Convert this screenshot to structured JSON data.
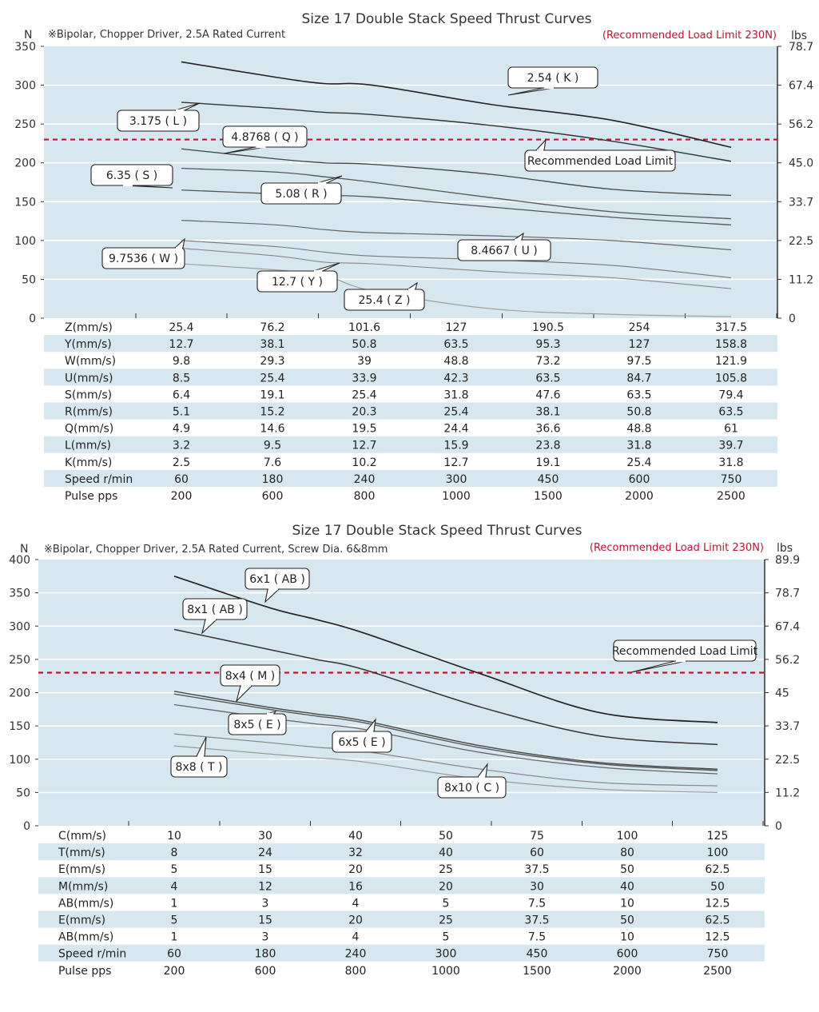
{
  "chart_data": [
    {
      "type": "line",
      "title": "Size 17 Double Stack Speed Thrust Curves",
      "note": "※Bipolar, Chopper Driver, 2.5A Rated Current",
      "limit_label": "(Recommended Load Limit 230N)",
      "limit_callout": "Recommended Load Limit",
      "limit_value": 230,
      "ylabel_left": "N",
      "ylabel_right": "lbs",
      "ylim": [
        0,
        350
      ],
      "yticks_left": [
        "0",
        "50",
        "100",
        "150",
        "200",
        "250",
        "300",
        "350"
      ],
      "yticks_right": [
        "0",
        "11.2",
        "22.5",
        "33.7",
        "45.0",
        "56.2",
        "67.4",
        "78.7"
      ],
      "grid": true,
      "x": [
        200,
        600,
        800,
        1000,
        1500,
        2000,
        2500
      ],
      "series": [
        {
          "name": "2.54 ( K )",
          "values": [
            330,
            310,
            302,
            300,
            275,
            255,
            220
          ]
        },
        {
          "name": "3.175 ( L )",
          "values": [
            278,
            270,
            265,
            262,
            248,
            228,
            202
          ]
        },
        {
          "name": "4.8768 ( Q )",
          "values": [
            218,
            205,
            200,
            198,
            185,
            166,
            158
          ]
        },
        {
          "name": "6.35 ( S )",
          "values": [
            193,
            188,
            182,
            175,
            155,
            137,
            128
          ]
        },
        {
          "name": "5.08 ( R )",
          "values": [
            165,
            160,
            158,
            156,
            143,
            130,
            120
          ]
        },
        {
          "name": "8.4667 ( U )",
          "values": [
            126,
            120,
            114,
            110,
            106,
            100,
            88
          ]
        },
        {
          "name": "9.7536 ( W )",
          "values": [
            100,
            92,
            85,
            80,
            75,
            68,
            52
          ]
        },
        {
          "name": "12.7 ( Y )",
          "values": [
            90,
            80,
            72,
            70,
            60,
            52,
            38
          ]
        },
        {
          "name": "25.4 ( Z )",
          "values": [
            70,
            62,
            55,
            35,
            12,
            5,
            2
          ]
        }
      ],
      "table": {
        "rows": [
          {
            "label": "Z(mm/s)",
            "values": [
              "25.4",
              "76.2",
              "101.6",
              "127",
              "190.5",
              "254",
              "317.5"
            ]
          },
          {
            "label": "Y(mm/s)",
            "values": [
              "12.7",
              "38.1",
              "50.8",
              "63.5",
              "95.3",
              "127",
              "158.8"
            ]
          },
          {
            "label": "W(mm/s)",
            "values": [
              "9.8",
              "29.3",
              "39",
              "48.8",
              "73.2",
              "97.5",
              "121.9"
            ]
          },
          {
            "label": "U(mm/s)",
            "values": [
              "8.5",
              "25.4",
              "33.9",
              "42.3",
              "63.5",
              "84.7",
              "105.8"
            ]
          },
          {
            "label": "S(mm/s)",
            "values": [
              "6.4",
              "19.1",
              "25.4",
              "31.8",
              "47.6",
              "63.5",
              "79.4"
            ]
          },
          {
            "label": "R(mm/s)",
            "values": [
              "5.1",
              "15.2",
              "20.3",
              "25.4",
              "38.1",
              "50.8",
              "63.5"
            ]
          },
          {
            "label": "Q(mm/s)",
            "values": [
              "4.9",
              "14.6",
              "19.5",
              "24.4",
              "36.6",
              "48.8",
              "61"
            ]
          },
          {
            "label": "L(mm/s)",
            "values": [
              "3.2",
              "9.5",
              "12.7",
              "15.9",
              "23.8",
              "31.8",
              "39.7"
            ]
          },
          {
            "label": "K(mm/s)",
            "values": [
              "2.5",
              "7.6",
              "10.2",
              "12.7",
              "19.1",
              "25.4",
              "31.8"
            ]
          },
          {
            "label": "Speed r/min",
            "values": [
              "60",
              "180",
              "240",
              "300",
              "450",
              "600",
              "750"
            ]
          },
          {
            "label": "Pulse  pps",
            "values": [
              "200",
              "600",
              "800",
              "1000",
              "1500",
              "2000",
              "2500"
            ]
          }
        ]
      }
    },
    {
      "type": "line",
      "title": "Size 17 Double Stack Speed Thrust Curves",
      "note": "※Bipolar, Chopper Driver, 2.5A Rated Current, Screw Dia. 6&8mm",
      "limit_label": "(Recommended Load Limit 230N)",
      "limit_callout": "Recommended Load Limit",
      "limit_value": 230,
      "ylabel_left": "N",
      "ylabel_right": "lbs",
      "ylim": [
        0,
        400
      ],
      "yticks_left": [
        "0",
        "50",
        "100",
        "150",
        "200",
        "250",
        "300",
        "350",
        "400"
      ],
      "yticks_right": [
        "0",
        "11.2",
        "22.5",
        "33.7",
        "45",
        "56.2",
        "67.4",
        "78.7",
        "89.9"
      ],
      "grid": true,
      "x": [
        200,
        600,
        800,
        1000,
        1500,
        2000,
        2500
      ],
      "series": [
        {
          "name": "6x1 ( AB )",
          "values": [
            375,
            328,
            310,
            290,
            228,
            170,
            155
          ]
        },
        {
          "name": "8x1 ( AB )",
          "values": [
            295,
            265,
            250,
            235,
            178,
            135,
            122
          ]
        },
        {
          "name": "8x4 ( M )",
          "values": [
            202,
            178,
            168,
            158,
            120,
            95,
            85
          ]
        },
        {
          "name": "6x5 ( E )",
          "values": [
            198,
            175,
            165,
            155,
            117,
            93,
            83
          ]
        },
        {
          "name": "8x5 ( E )",
          "values": [
            182,
            162,
            153,
            145,
            110,
            88,
            78
          ]
        },
        {
          "name": "8x8 ( T )",
          "values": [
            138,
            125,
            118,
            112,
            85,
            65,
            60
          ]
        },
        {
          "name": "8x10 ( C )",
          "values": [
            120,
            108,
            102,
            96,
            70,
            55,
            50
          ]
        }
      ],
      "table": {
        "rows": [
          {
            "label": "C(mm/s)",
            "values": [
              "10",
              "30",
              "40",
              "50",
              "75",
              "100",
              "125"
            ]
          },
          {
            "label": "T(mm/s)",
            "values": [
              "8",
              "24",
              "32",
              "40",
              "60",
              "80",
              "100"
            ]
          },
          {
            "label": "E(mm/s)",
            "values": [
              "5",
              "15",
              "20",
              "25",
              "37.5",
              "50",
              "62.5"
            ]
          },
          {
            "label": "M(mm/s)",
            "values": [
              "4",
              "12",
              "16",
              "20",
              "30",
              "40",
              "50"
            ]
          },
          {
            "label": "AB(mm/s)",
            "values": [
              "1",
              "3",
              "4",
              "5",
              "7.5",
              "10",
              "12.5"
            ]
          },
          {
            "label": "E(mm/s)",
            "values": [
              "5",
              "15",
              "20",
              "25",
              "37.5",
              "50",
              "62.5"
            ]
          },
          {
            "label": "AB(mm/s)",
            "values": [
              "1",
              "3",
              "4",
              "5",
              "7.5",
              "10",
              "12.5"
            ]
          },
          {
            "label": "Speed r/min",
            "values": [
              "60",
              "180",
              "240",
              "300",
              "450",
              "600",
              "750"
            ]
          },
          {
            "label": "Pulse  pps",
            "values": [
              "200",
              "600",
              "800",
              "1000",
              "1500",
              "2000",
              "2500"
            ]
          }
        ]
      }
    }
  ]
}
